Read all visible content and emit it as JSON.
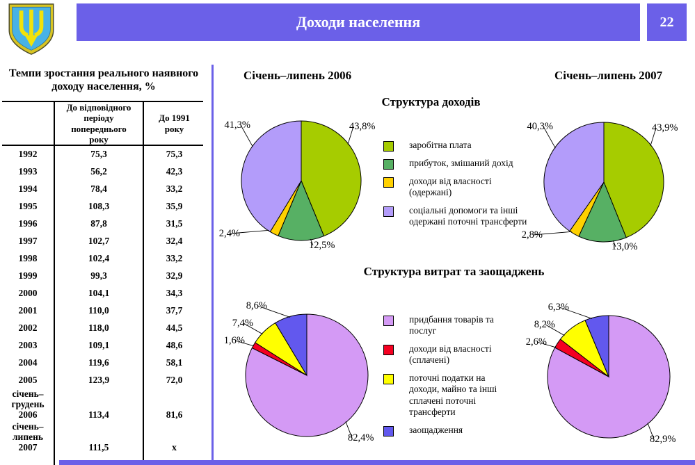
{
  "header": {
    "title": "Доходи населення",
    "page_number": "22",
    "banner_color": "#6b60e8"
  },
  "table": {
    "title": "Темпи зростання реального наявного доходу населення, %",
    "col_headers": [
      "До відповідного\nперіоду\nпопереднього\nроку",
      "До 1991\nроку"
    ],
    "rows": [
      [
        "1992",
        "75,3",
        "75,3"
      ],
      [
        "1993",
        "56,2",
        "42,3"
      ],
      [
        "1994",
        "78,4",
        "33,2"
      ],
      [
        "1995",
        "108,3",
        "35,9"
      ],
      [
        "1996",
        "87,8",
        "31,5"
      ],
      [
        "1997",
        "102,7",
        "32,4"
      ],
      [
        "1998",
        "102,4",
        "33,2"
      ],
      [
        "1999",
        "99,3",
        "32,9"
      ],
      [
        "2000",
        "104,1",
        "34,3"
      ],
      [
        "2001",
        "110,0",
        "37,7"
      ],
      [
        "2002",
        "118,0",
        "44,5"
      ],
      [
        "2003",
        "109,1",
        "48,6"
      ],
      [
        "2004",
        "119,6",
        "58,1"
      ],
      [
        "2005",
        "123,9",
        "72,0"
      ],
      [
        "січень–\nгрудень\n2006",
        "113,4",
        "81,6"
      ],
      [
        "січень–\nлипень\n2007",
        "111,5",
        "x"
      ]
    ]
  },
  "sections": {
    "period_left": "Січень–липень 2006",
    "period_right": "Січень–липень 2007",
    "income_title": "Структура доходів",
    "expense_title": "Структура витрат та заощаджень"
  },
  "income_legend": [
    {
      "color": "#a6cc00",
      "label": "заробітна плата"
    },
    {
      "color": "#57b064",
      "label": "прибуток, змішаний дохід"
    },
    {
      "color": "#ffd100",
      "label": "доходи від власності\n(одержані)"
    },
    {
      "color": "#b39cfa",
      "label": "соціальні допомоги та інші\nодержані поточні трансферти"
    }
  ],
  "expense_legend": [
    {
      "color": "#d49af5",
      "label": "придбання товарів та\nпослуг"
    },
    {
      "color": "#f50021",
      "label": "доходи від власності\n(сплачені)"
    },
    {
      "color": "#ffff00",
      "label": "поточні податки на\nдоходи, майно та інші\nсплачені поточні\nтрансферти"
    },
    {
      "color": "#6258ee",
      "label": "заощадження"
    }
  ],
  "chart_data": [
    {
      "type": "pie",
      "name": "income-2006",
      "title": "Структура доходів — Січень–липень 2006",
      "labels": [
        "заробітна плата",
        "прибуток, змішаний дохід",
        "доходи від власності (одержані)",
        "соціальні допомоги та інші одержані поточні трансферти"
      ],
      "values": [
        43.8,
        12.5,
        2.4,
        41.3
      ],
      "display": [
        "43,8%",
        "12,5%",
        "2,4%",
        "41,3%"
      ],
      "colors": [
        "#a6cc00",
        "#57b064",
        "#ffd100",
        "#b39cfa"
      ],
      "legend_position": "right"
    },
    {
      "type": "pie",
      "name": "income-2007",
      "title": "Структура доходів — Січень–липень 2007",
      "labels": [
        "заробітна плата",
        "прибуток, змішаний дохід",
        "доходи від власності (одержані)",
        "соціальні допомоги та інші одержані поточні трансферти"
      ],
      "values": [
        43.9,
        13.0,
        2.8,
        40.3
      ],
      "display": [
        "43,9%",
        "13,0%",
        "2,8%",
        "40,3%"
      ],
      "colors": [
        "#a6cc00",
        "#57b064",
        "#ffd100",
        "#b39cfa"
      ],
      "legend_position": "left"
    },
    {
      "type": "pie",
      "name": "expense-2006",
      "title": "Структура витрат та заощаджень — Січень–липень 2006",
      "labels": [
        "придбання товарів та послуг",
        "доходи від власності (сплачені)",
        "поточні податки на доходи, майно та інші сплачені поточні трансферти",
        "заощадження"
      ],
      "values": [
        82.4,
        1.6,
        7.4,
        8.6
      ],
      "display": [
        "82,4%",
        "1,6%",
        "7,4%",
        "8,6%"
      ],
      "colors": [
        "#d49af5",
        "#f50021",
        "#ffff00",
        "#6258ee"
      ],
      "legend_position": "right"
    },
    {
      "type": "pie",
      "name": "expense-2007",
      "title": "Структура витрат та заощаджень — Січень–липень 2007",
      "labels": [
        "придбання товарів та послуг",
        "доходи від власності (сплачені)",
        "поточні податки на доходи, майно та інші сплачені поточні трансферти",
        "заощадження"
      ],
      "values": [
        82.9,
        2.6,
        8.2,
        6.3
      ],
      "display": [
        "82,9%",
        "2,6%",
        "8,2%",
        "6,3%"
      ],
      "colors": [
        "#d49af5",
        "#f50021",
        "#ffff00",
        "#6258ee"
      ],
      "legend_position": "left"
    }
  ]
}
